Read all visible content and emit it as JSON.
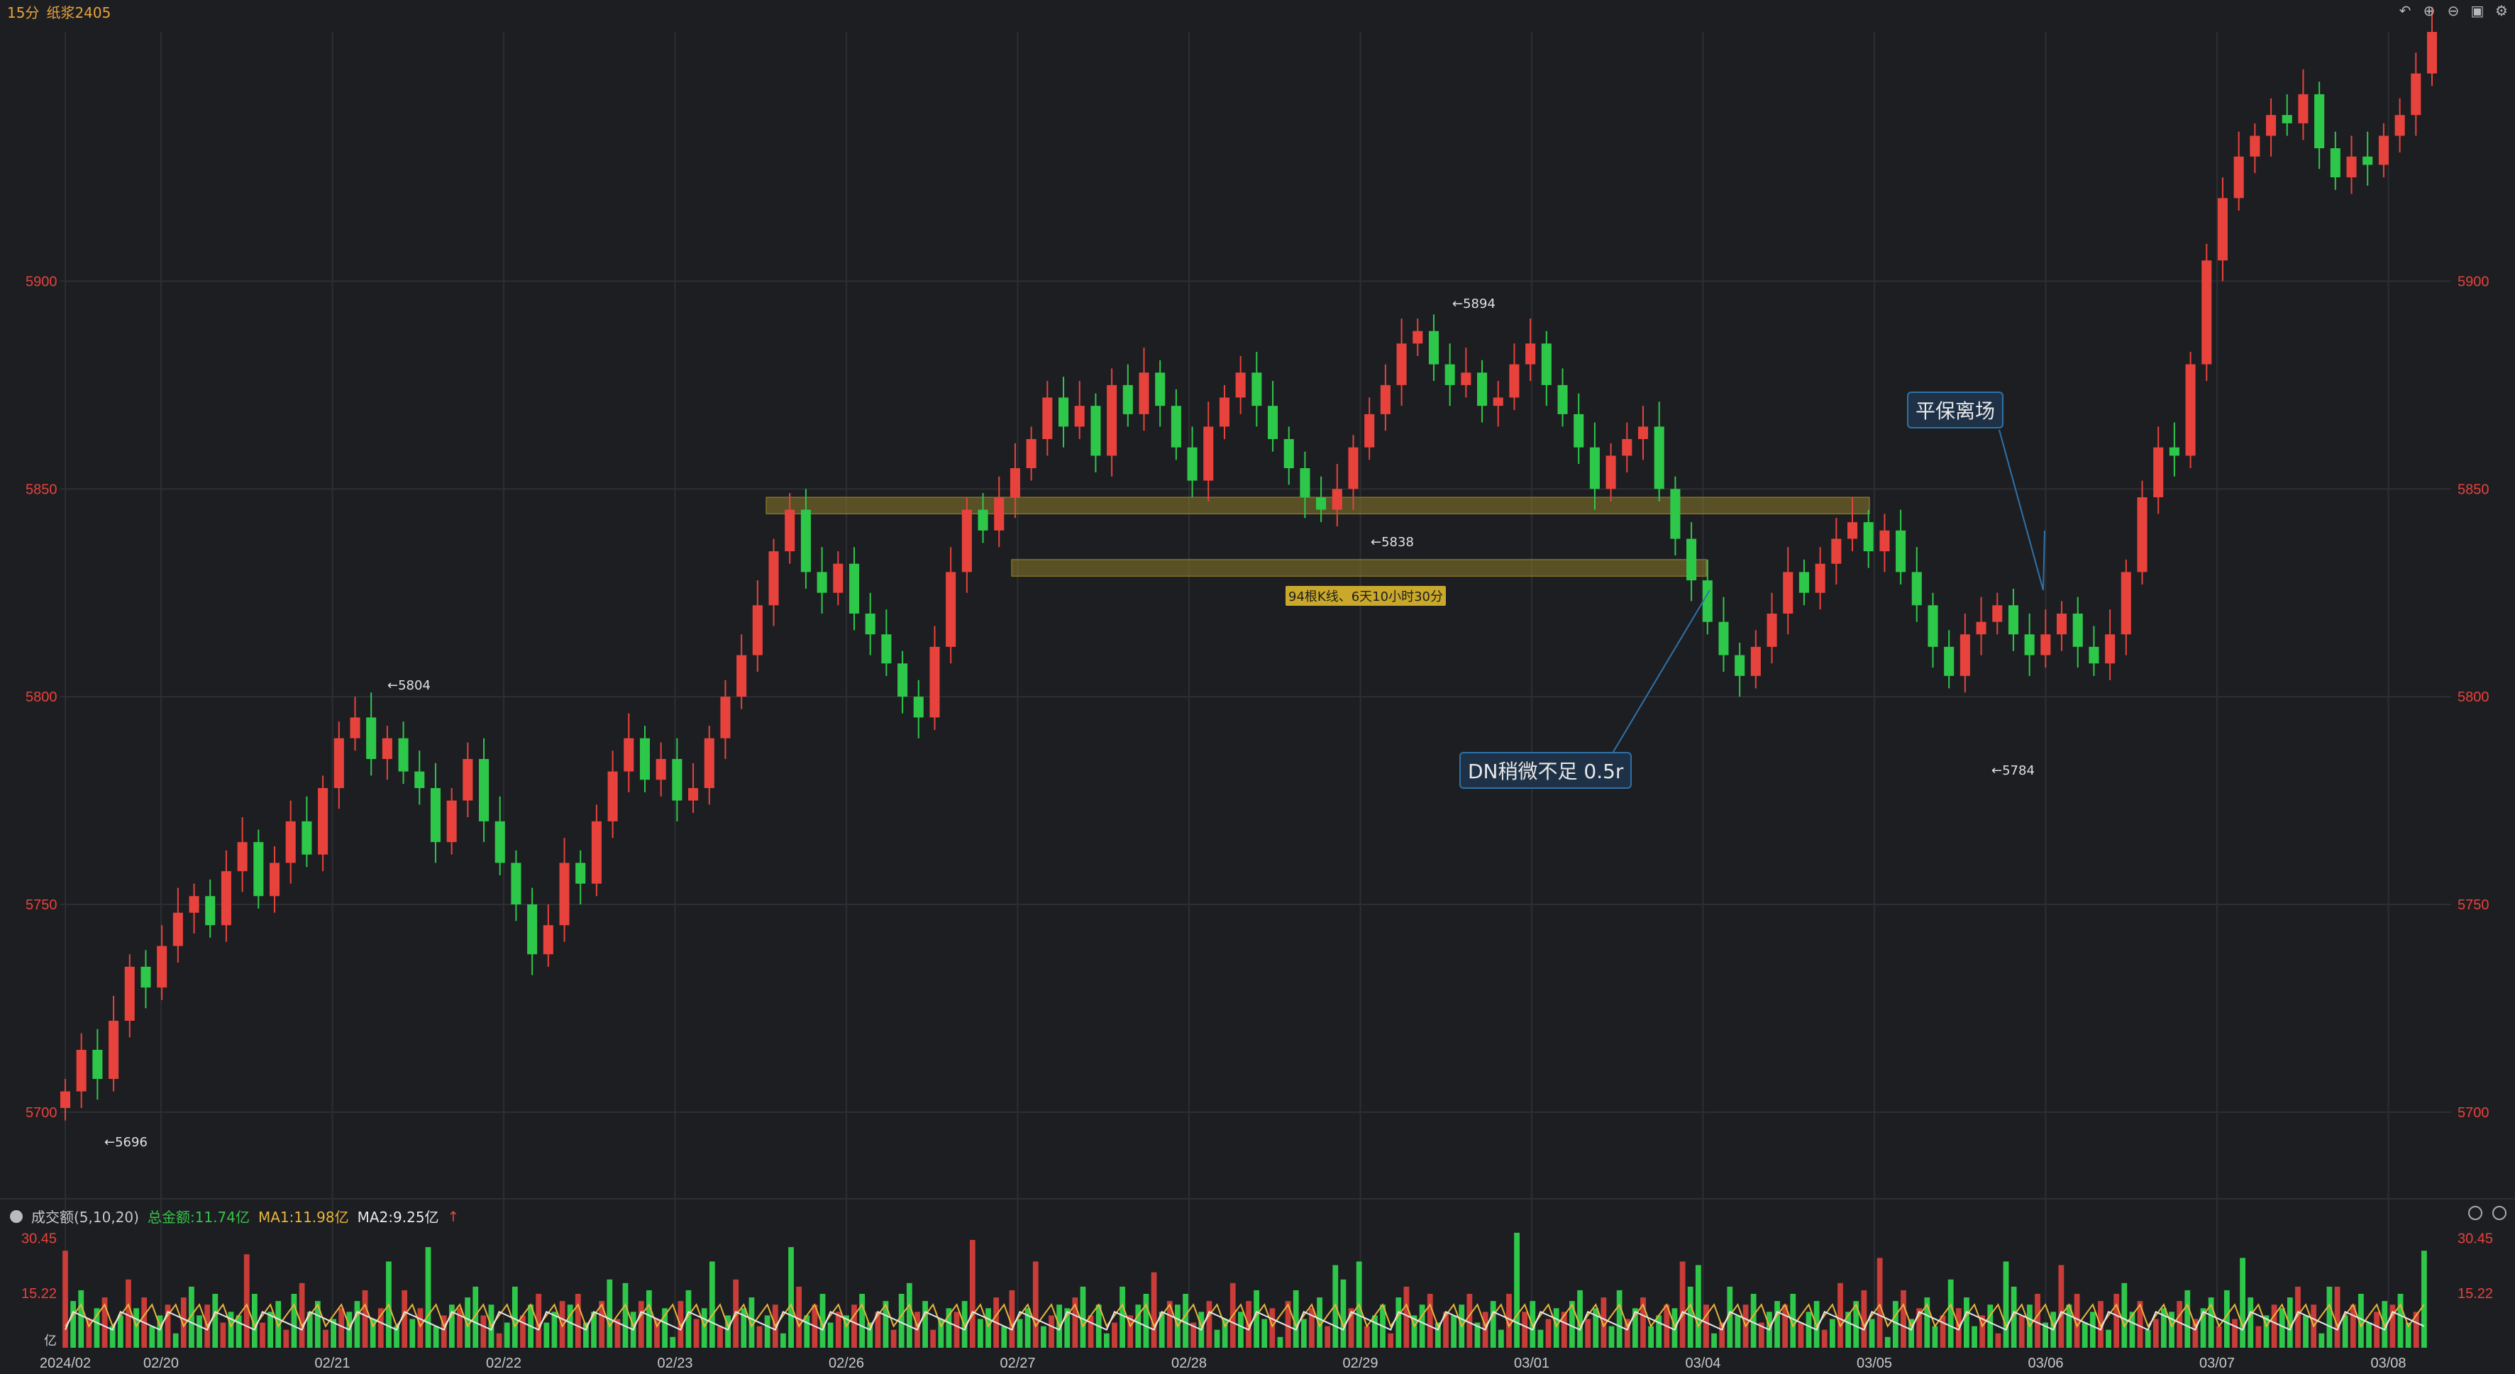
{
  "header": {
    "period": "15分",
    "symbol": "纸浆2405"
  },
  "toolbar": {
    "icons": [
      "undo-icon",
      "zoom-in-icon",
      "zoom-out-icon",
      "window-icon",
      "settings-icon"
    ]
  },
  "volume_header": {
    "label": "成交额(5,10,20)",
    "total": "总金额:11.74亿",
    "ma1": "MA1:11.98亿",
    "ma2": "MA2:9.25亿",
    "arrow": "↑"
  },
  "annotations": {
    "exit": "平保离场",
    "dn": "DN稍微不足 0.5r",
    "zone_label": "94根K线、6天10小时30分",
    "high_label": "←5894",
    "low_label_1": "←5696",
    "low_label_2": "←5784",
    "label_5804": "←5804",
    "label_5838": "←5838"
  },
  "colors": {
    "up": "#e8423c",
    "down": "#2dc84a",
    "background": "#1d1e22",
    "grid": "#2c2e33",
    "axis_price": "#e8423c",
    "zone_fill": "#8a7a2a",
    "annotation_border": "#2f72a8",
    "ma1": "#e8b53a",
    "ma2": "#e8e8e8"
  },
  "chart_data": {
    "type": "candlestick",
    "title": "纸浆2405 15分",
    "ylim": [
      5680,
      5960
    ],
    "y_ticks": [
      5700,
      5750,
      5800,
      5850,
      5900
    ],
    "x_tick_labels": [
      "2024/02",
      "02/20",
      "02/21",
      "02/22",
      "02/23",
      "02/26",
      "02/27",
      "02/28",
      "02/29",
      "03/01",
      "03/04",
      "03/05",
      "03/06",
      "03/07",
      "03/08"
    ],
    "key_closes": [
      5705,
      5715,
      5708,
      5722,
      5735,
      5730,
      5740,
      5748,
      5752,
      5745,
      5758,
      5765,
      5752,
      5760,
      5770,
      5762,
      5778,
      5790,
      5795,
      5785,
      5790,
      5782,
      5778,
      5765,
      5775,
      5785,
      5770,
      5760,
      5750,
      5738,
      5745,
      5760,
      5755,
      5770,
      5782,
      5790,
      5780,
      5785,
      5775,
      5778,
      5790,
      5800,
      5810,
      5822,
      5835,
      5845,
      5830,
      5825,
      5832,
      5820,
      5815,
      5808,
      5800,
      5795,
      5812,
      5830,
      5845,
      5840,
      5848,
      5855,
      5862,
      5872,
      5865,
      5870,
      5858,
      5875,
      5868,
      5878,
      5870,
      5860,
      5852,
      5865,
      5872,
      5878,
      5870,
      5862,
      5855,
      5848,
      5845,
      5850,
      5860,
      5868,
      5875,
      5885,
      5888,
      5880,
      5875,
      5878,
      5870,
      5872,
      5880,
      5885,
      5875,
      5868,
      5860,
      5850,
      5858,
      5862,
      5865,
      5850,
      5838,
      5828,
      5818,
      5810,
      5805,
      5812,
      5820,
      5830,
      5825,
      5832,
      5838,
      5842,
      5835,
      5840,
      5830,
      5822,
      5812,
      5805,
      5815,
      5818,
      5822,
      5815,
      5810,
      5815,
      5820,
      5812,
      5808,
      5815,
      5830,
      5848,
      5860,
      5858,
      5880,
      5905,
      5920,
      5930,
      5935,
      5940,
      5938,
      5945,
      5932,
      5925,
      5930,
      5928,
      5935,
      5940,
      5950,
      5960
    ],
    "annotated_points": {
      "high": 5894,
      "lows": [
        5696,
        5784
      ],
      "marks": [
        5804,
        5838
      ]
    },
    "zones": [
      {
        "from": 5844,
        "to": 5848
      },
      {
        "from": 5829,
        "to": 5833
      }
    ],
    "volume_axis_ticks": [
      15.22,
      30.45
    ],
    "volume_unit": "亿"
  }
}
